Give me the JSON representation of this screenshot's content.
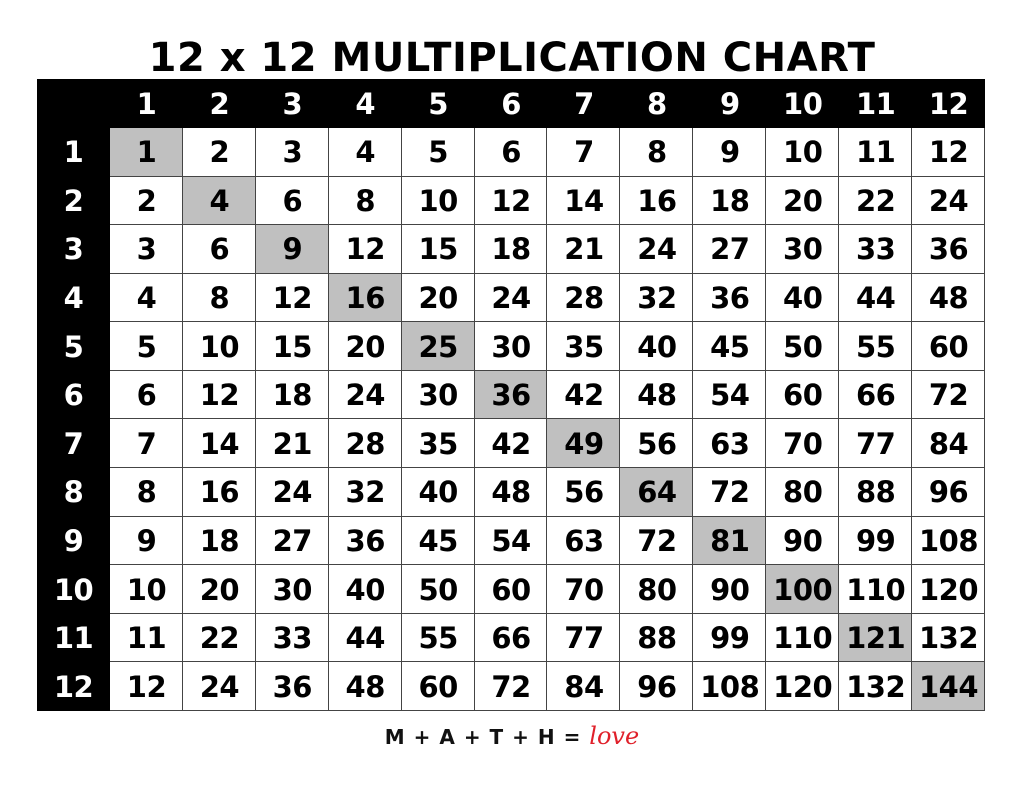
{
  "title": "12 x 12 MULTIPLICATION CHART",
  "highlight_color": "#c0c0c0",
  "header_color": "#000000",
  "column_headers": [
    "1",
    "2",
    "3",
    "4",
    "5",
    "6",
    "7",
    "8",
    "9",
    "10",
    "11",
    "12"
  ],
  "rows": [
    {
      "label": "1",
      "values": [
        "1",
        "2",
        "3",
        "4",
        "5",
        "6",
        "7",
        "8",
        "9",
        "10",
        "11",
        "12"
      ]
    },
    {
      "label": "2",
      "values": [
        "2",
        "4",
        "6",
        "8",
        "10",
        "12",
        "14",
        "16",
        "18",
        "20",
        "22",
        "24"
      ]
    },
    {
      "label": "3",
      "values": [
        "3",
        "6",
        "9",
        "12",
        "15",
        "18",
        "21",
        "24",
        "27",
        "30",
        "33",
        "36"
      ]
    },
    {
      "label": "4",
      "values": [
        "4",
        "8",
        "12",
        "16",
        "20",
        "24",
        "28",
        "32",
        "36",
        "40",
        "44",
        "48"
      ]
    },
    {
      "label": "5",
      "values": [
        "5",
        "10",
        "15",
        "20",
        "25",
        "30",
        "35",
        "40",
        "45",
        "50",
        "55",
        "60"
      ]
    },
    {
      "label": "6",
      "values": [
        "6",
        "12",
        "18",
        "24",
        "30",
        "36",
        "42",
        "48",
        "54",
        "60",
        "66",
        "72"
      ]
    },
    {
      "label": "7",
      "values": [
        "7",
        "14",
        "21",
        "28",
        "35",
        "42",
        "49",
        "56",
        "63",
        "70",
        "77",
        "84"
      ]
    },
    {
      "label": "8",
      "values": [
        "8",
        "16",
        "24",
        "32",
        "40",
        "48",
        "56",
        "64",
        "72",
        "80",
        "88",
        "96"
      ]
    },
    {
      "label": "9",
      "values": [
        "9",
        "18",
        "27",
        "36",
        "45",
        "54",
        "63",
        "72",
        "81",
        "90",
        "99",
        "108"
      ]
    },
    {
      "label": "10",
      "values": [
        "10",
        "20",
        "30",
        "40",
        "50",
        "60",
        "70",
        "80",
        "90",
        "100",
        "110",
        "120"
      ]
    },
    {
      "label": "11",
      "values": [
        "11",
        "22",
        "33",
        "44",
        "55",
        "66",
        "77",
        "88",
        "99",
        "110",
        "121",
        "132"
      ]
    },
    {
      "label": "12",
      "values": [
        "12",
        "24",
        "36",
        "48",
        "60",
        "72",
        "84",
        "96",
        "108",
        "120",
        "132",
        "144"
      ]
    }
  ],
  "footer": {
    "equation": "M + A + T + H = ",
    "love": "love"
  }
}
